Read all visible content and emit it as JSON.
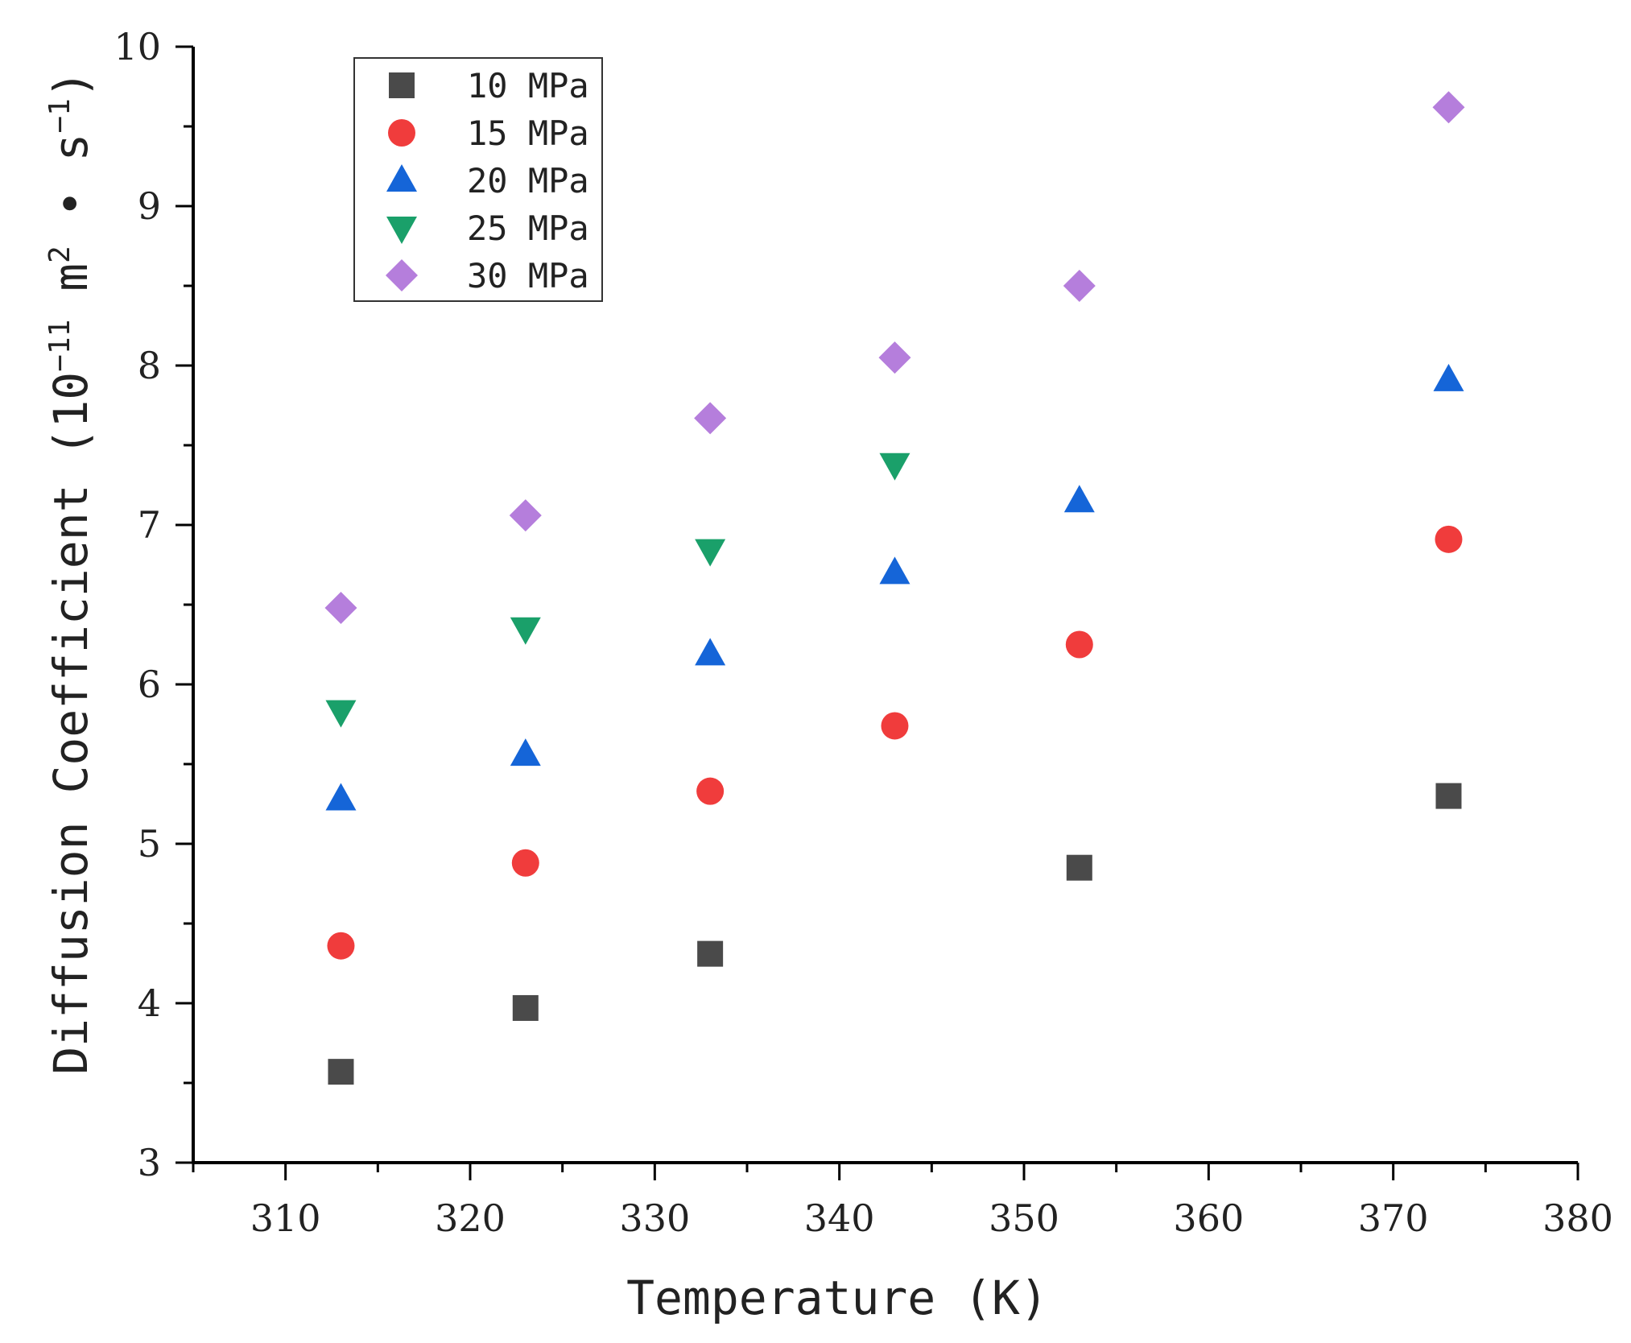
{
  "chart_data": {
    "type": "scatter",
    "title": "",
    "xlabel": "Temperature (K)",
    "ylabel": {
      "prefix": "Diffusion Coefficient (10",
      "exp1": "−11",
      "mid": " m",
      "exp2": "2",
      "dot": " • s",
      "exp3": "−1",
      "suffix": ")"
    },
    "xlim": [
      305,
      380
    ],
    "ylim": [
      3,
      10
    ],
    "xticks": [
      310,
      320,
      330,
      340,
      350,
      360,
      370,
      380
    ],
    "yticks": [
      3,
      4,
      5,
      6,
      7,
      8,
      9,
      10
    ],
    "legend_position": "top-left",
    "x": [
      313,
      323,
      333,
      343,
      353,
      373
    ],
    "series": [
      {
        "name": "10 MPa",
        "marker": "square",
        "color": "#4a4a4a",
        "points": [
          [
            313,
            3.57
          ],
          [
            323,
            3.97
          ],
          [
            333,
            4.31
          ],
          [
            353,
            4.85
          ],
          [
            373,
            5.3
          ]
        ]
      },
      {
        "name": "15 MPa",
        "marker": "circle",
        "color": "#f03c3c",
        "points": [
          [
            313,
            4.36
          ],
          [
            323,
            4.88
          ],
          [
            333,
            5.33
          ],
          [
            343,
            5.74
          ],
          [
            353,
            6.25
          ],
          [
            373,
            6.91
          ]
        ]
      },
      {
        "name": "20 MPa",
        "marker": "triangle-up",
        "color": "#1565d8",
        "points": [
          [
            313,
            5.28
          ],
          [
            323,
            5.56
          ],
          [
            333,
            6.19
          ],
          [
            343,
            6.7
          ],
          [
            353,
            7.15
          ],
          [
            373,
            7.91
          ]
        ]
      },
      {
        "name": "25 MPa",
        "marker": "triangle-down",
        "color": "#1aa06a",
        "points": [
          [
            313,
            5.83
          ],
          [
            323,
            6.35
          ],
          [
            333,
            6.84
          ],
          [
            343,
            7.38
          ]
        ]
      },
      {
        "name": "30 MPa",
        "marker": "diamond",
        "color": "#b57edc",
        "points": [
          [
            313,
            6.48
          ],
          [
            323,
            7.06
          ],
          [
            333,
            7.67
          ],
          [
            343,
            8.05
          ],
          [
            353,
            8.5
          ],
          [
            373,
            9.62
          ]
        ]
      }
    ]
  }
}
